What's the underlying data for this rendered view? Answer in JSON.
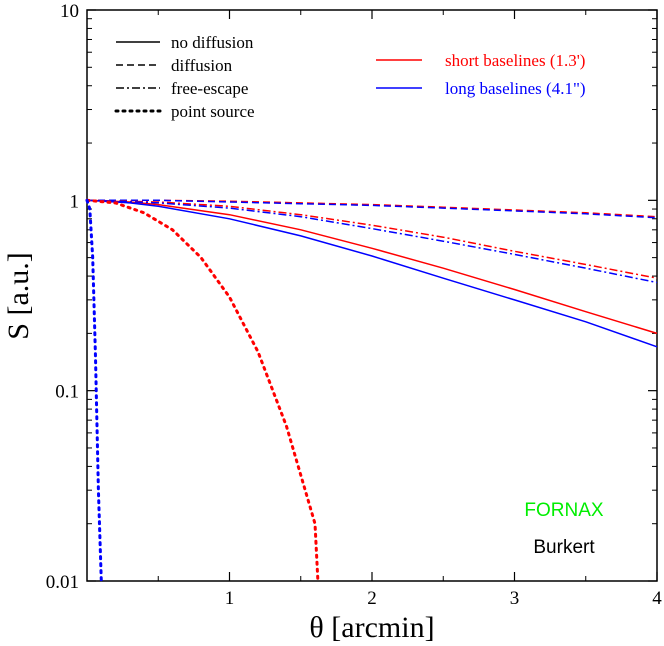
{
  "chart_data": {
    "type": "line",
    "xlabel": "θ  [arcmin]",
    "ylabel": "S [a.u.]",
    "xlim": [
      0,
      4
    ],
    "ylim": [
      0.01,
      10
    ],
    "yscale": "log",
    "x_ticks": [
      1,
      2,
      3,
      4
    ],
    "x_tick_labels": [
      "1",
      "2",
      "3",
      "4"
    ],
    "y_ticks": [
      0.01,
      0.1,
      1,
      10
    ],
    "y_tick_labels": [
      "0.01",
      "0.1",
      "1",
      "10"
    ],
    "grid": false,
    "style_legend": {
      "placement": "top-left",
      "entries": [
        {
          "label": "no diffusion",
          "dash": "solid"
        },
        {
          "label": "diffusion",
          "dash": "dashed"
        },
        {
          "label": "free-escape",
          "dash": "dashdot"
        },
        {
          "label": "point source",
          "dash": "dotted"
        }
      ]
    },
    "color_legend": {
      "placement": "top-right",
      "entries": [
        {
          "label": "short baselines (1.3')",
          "color": "#ff0000"
        },
        {
          "label": "long baselines (4.1\")",
          "color": "#0000ff"
        }
      ]
    },
    "annotations": [
      {
        "text": "FORNAX",
        "color": "#00ee00"
      },
      {
        "text": "Burkert",
        "color": "#000000"
      }
    ],
    "series": [
      {
        "style": "no diffusion",
        "baseline": "short baselines (1.3')",
        "color": "#ff0000",
        "dash": "solid",
        "x": [
          0,
          0.3,
          0.5,
          1,
          1.5,
          2,
          2.5,
          3,
          3.5,
          4
        ],
        "y": [
          1.0,
          0.98,
          0.95,
          0.84,
          0.7,
          0.56,
          0.44,
          0.34,
          0.26,
          0.2
        ]
      },
      {
        "style": "no diffusion",
        "baseline": "long baselines (4.1\")",
        "color": "#0000ff",
        "dash": "solid",
        "x": [
          0,
          0.3,
          0.5,
          1,
          1.5,
          2,
          2.5,
          3,
          3.5,
          4
        ],
        "y": [
          1.0,
          0.97,
          0.93,
          0.8,
          0.65,
          0.51,
          0.39,
          0.3,
          0.23,
          0.17
        ]
      },
      {
        "style": "diffusion",
        "baseline": "short baselines (1.3')",
        "color": "#ff0000",
        "dash": "dashed",
        "x": [
          0,
          0.5,
          1,
          1.5,
          2,
          2.5,
          3,
          3.5,
          4
        ],
        "y": [
          1.0,
          1.0,
          0.99,
          0.97,
          0.95,
          0.92,
          0.89,
          0.86,
          0.82
        ]
      },
      {
        "style": "diffusion",
        "baseline": "long baselines (4.1\")",
        "color": "#0000ff",
        "dash": "dashed",
        "x": [
          0,
          0.5,
          1,
          1.5,
          2,
          2.5,
          3,
          3.5,
          4
        ],
        "y": [
          1.0,
          1.0,
          0.98,
          0.96,
          0.94,
          0.91,
          0.88,
          0.85,
          0.81
        ]
      },
      {
        "style": "free-escape",
        "baseline": "short baselines (1.3')",
        "color": "#ff0000",
        "dash": "dashdot",
        "x": [
          0,
          0.5,
          1,
          1.5,
          2,
          2.5,
          3,
          3.5,
          4
        ],
        "y": [
          1.0,
          0.98,
          0.93,
          0.84,
          0.74,
          0.64,
          0.54,
          0.46,
          0.39
        ]
      },
      {
        "style": "free-escape",
        "baseline": "long baselines (4.1\")",
        "color": "#0000ff",
        "dash": "dashdot",
        "x": [
          0,
          0.5,
          1,
          1.5,
          2,
          2.5,
          3,
          3.5,
          4
        ],
        "y": [
          1.0,
          0.97,
          0.91,
          0.82,
          0.71,
          0.61,
          0.52,
          0.44,
          0.37
        ]
      },
      {
        "style": "point source",
        "baseline": "short baselines (1.3')",
        "color": "#ff0000",
        "dash": "dotted",
        "x": [
          0,
          0.2,
          0.4,
          0.6,
          0.8,
          1.0,
          1.2,
          1.4,
          1.6,
          1.62
        ],
        "y": [
          1.0,
          0.97,
          0.86,
          0.7,
          0.5,
          0.31,
          0.16,
          0.065,
          0.02,
          0.01
        ]
      },
      {
        "style": "point source",
        "baseline": "long baselines (4.1\")",
        "color": "#0000ff",
        "dash": "dotted",
        "x": [
          0,
          0.02,
          0.04,
          0.06,
          0.08,
          0.1
        ],
        "y": [
          1.0,
          0.9,
          0.5,
          0.15,
          0.03,
          0.01
        ]
      }
    ]
  }
}
